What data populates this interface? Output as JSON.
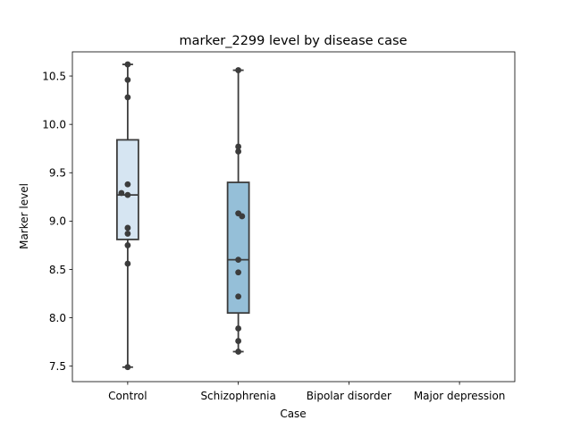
{
  "chart_data": {
    "type": "box",
    "title": "marker_2299 level by disease case",
    "xlabel": "Case",
    "ylabel": "Marker level",
    "categories": [
      "Control",
      "Schizophrenia",
      "Bipolar disorder",
      "Major depression"
    ],
    "ylim": [
      7.34,
      10.75
    ],
    "yticks": [
      7.5,
      8.0,
      8.5,
      9.0,
      9.5,
      10.0,
      10.5
    ],
    "ytick_labels": [
      "7.5",
      "8.0",
      "8.5",
      "9.0",
      "9.5",
      "10.0",
      "10.5"
    ],
    "grid": false,
    "boxes": [
      {
        "category": "Control",
        "color": "#d6e5f2",
        "whisker_low": 7.49,
        "q1": 8.81,
        "median": 9.27,
        "q3": 9.84,
        "whisker_high": 10.62,
        "points": [
          10.62,
          10.46,
          10.28,
          9.38,
          9.29,
          9.27,
          8.93,
          8.87,
          8.75,
          8.56,
          7.49
        ]
      },
      {
        "category": "Schizophrenia",
        "color": "#95bfd8",
        "whisker_low": 7.65,
        "q1": 8.05,
        "median": 8.6,
        "q3": 9.4,
        "whisker_high": 10.56,
        "points": [
          10.56,
          9.77,
          9.72,
          9.08,
          9.05,
          8.6,
          8.47,
          8.22,
          7.89,
          7.76,
          7.65
        ]
      }
    ],
    "point_color": "#3c3c3c",
    "edge_color": "#3c3c3c"
  }
}
